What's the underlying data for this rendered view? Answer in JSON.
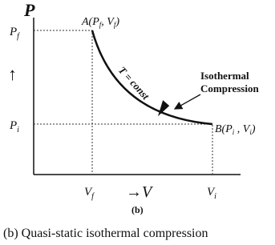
{
  "diagram": {
    "p_axis": "P",
    "v_axis": "→V",
    "up_arrow": "↑",
    "p_f": {
      "main": "P",
      "sub": "f"
    },
    "p_i": {
      "main": "P",
      "sub": "i"
    },
    "v_f": {
      "main": "V",
      "sub": "f"
    },
    "v_i": {
      "main": "V",
      "sub": "i"
    },
    "point_a": {
      "prefix": "A(P",
      "sub1": "f",
      "mid": ", V",
      "sub2": "f",
      "suffix": ")"
    },
    "point_b": {
      "prefix": "B(P",
      "sub1": "i",
      "mid": " , V",
      "sub2": "i",
      "suffix": ")"
    },
    "curve_label": "T = const",
    "process_label": [
      "Isothermal",
      "Compression"
    ],
    "panel": "(b)",
    "caption": "(b) Quasi-static isothermal compression"
  }
}
